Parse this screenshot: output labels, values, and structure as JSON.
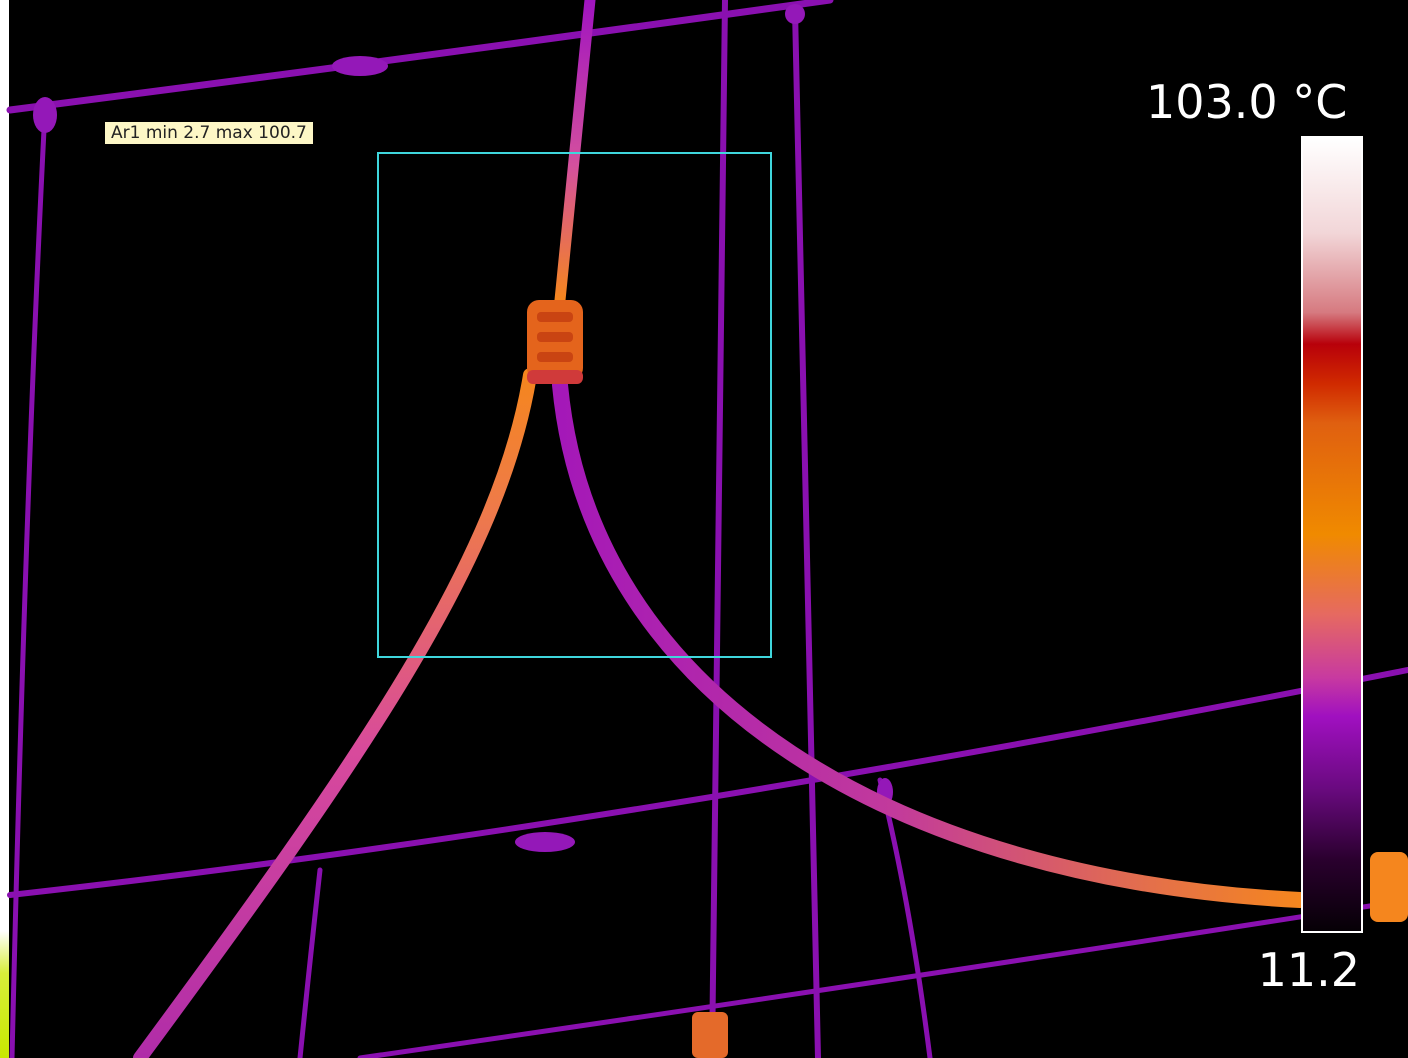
{
  "overlay": {
    "area_label": "Ar1 min 2.7 max 100.7"
  },
  "scale": {
    "max_label": "103.0 °C",
    "min_label": "11.2",
    "palette_icon": "iron-colorbar"
  },
  "colors": {
    "roi_outline": "#3fd6dc",
    "label_background": "#fdf7c6",
    "hot": "#f5861e",
    "warm": "#c03ab0",
    "cool": "#8a10b0"
  }
}
